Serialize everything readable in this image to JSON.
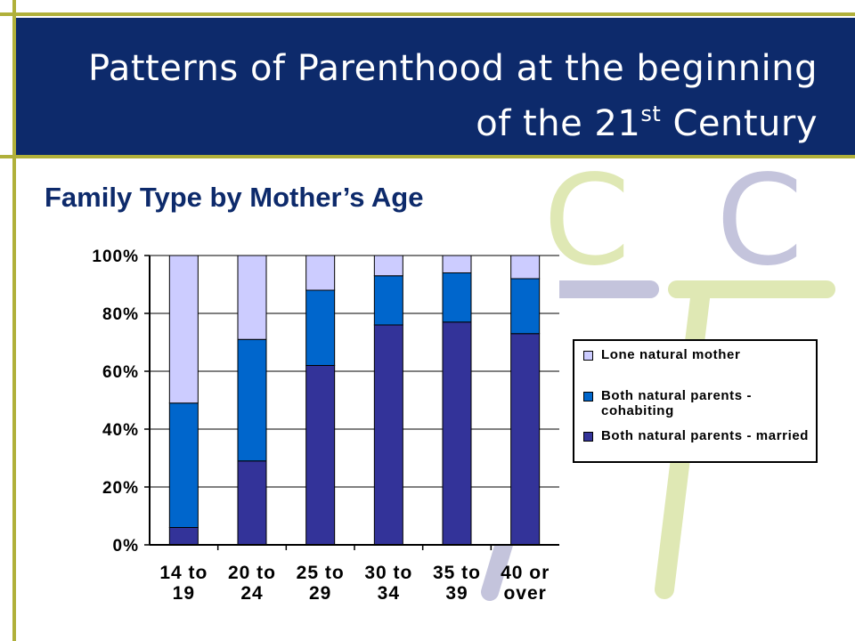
{
  "slide": {
    "title_main": "Patterns of Parenthood at the beginning",
    "title_line2": "of the 21",
    "title_sup": "st",
    "title_end": " Century",
    "subtitle": "Family Type by Mother’s Age"
  },
  "logo": {
    "letters": [
      "C",
      "C"
    ],
    "color_light": "#dfe8b4",
    "color_dark": "#c4c4dc"
  },
  "colors": {
    "banner": "#0d2a6b",
    "accent": "#b0b03a"
  },
  "chart_data": {
    "type": "bar",
    "stacked": true,
    "percent": true,
    "categories": [
      [
        "14 to",
        "19"
      ],
      [
        "20 to",
        "24"
      ],
      [
        "25 to",
        "29"
      ],
      [
        "30 to",
        "34"
      ],
      [
        "35 to",
        "39"
      ],
      [
        "40 or",
        "over"
      ]
    ],
    "series": [
      {
        "name": "Both natural parents - married",
        "values": [
          6,
          29,
          62,
          76,
          77,
          73
        ],
        "color": "#333399"
      },
      {
        "name": "Both natural parents - cohabiting",
        "values": [
          43,
          42,
          26,
          17,
          17,
          19
        ],
        "color": "#0066cc"
      },
      {
        "name": "Lone natural mother",
        "values": [
          51,
          29,
          12,
          7,
          6,
          8
        ],
        "color": "#ccccff"
      }
    ],
    "yticks": [
      "0%",
      "20%",
      "40%",
      "60%",
      "80%",
      "100%"
    ],
    "ylim": [
      0,
      100
    ],
    "grid": true,
    "legend": [
      {
        "label": "Lone natural mother",
        "color": "#ccccff"
      },
      {
        "label": "Both natural parents - cohabiting",
        "color": "#0066cc"
      },
      {
        "label": "Both natural parents - married",
        "color": "#333399"
      }
    ]
  }
}
